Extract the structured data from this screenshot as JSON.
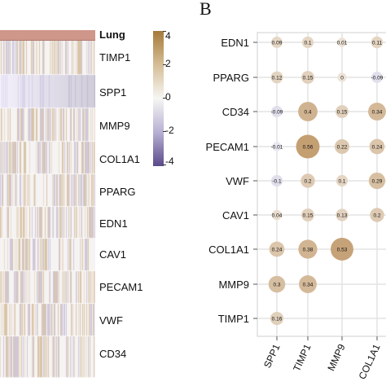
{
  "heatmap": {
    "group_label": "Lung",
    "genes": [
      "TIMP1",
      "SPP1",
      "MMP9",
      "COL1A1",
      "PPARG",
      "EDN1",
      "CAV1",
      "PECAM1",
      "VWF",
      "CD34"
    ],
    "colorbar": {
      "ticks": [
        "4",
        "2",
        "0",
        "-2",
        "-4"
      ],
      "high_color": "#a57a3a",
      "mid_color": "#f6f6f4",
      "low_color": "#5a4a8a"
    }
  },
  "panel_b": {
    "letter": "B"
  },
  "chart_data": {
    "type": "scatter",
    "rows": [
      "EDN1",
      "PPARG",
      "CD34",
      "PECAM1",
      "VWF",
      "CAV1",
      "COL1A1",
      "MMP9",
      "TIMP1"
    ],
    "columns": [
      "SPP1",
      "TIMP1",
      "MMP9",
      "COL1A1"
    ],
    "cells": [
      {
        "row": "EDN1",
        "col": "SPP1",
        "value": 0.09,
        "label": "0.09"
      },
      {
        "row": "EDN1",
        "col": "TIMP1",
        "value": 0.1,
        "label": "0.1"
      },
      {
        "row": "EDN1",
        "col": "MMP9",
        "value": 0.01,
        "label": "0.01"
      },
      {
        "row": "EDN1",
        "col": "COL1A1",
        "value": 0.11,
        "label": "0.11"
      },
      {
        "row": "PPARG",
        "col": "SPP1",
        "value": 0.12,
        "label": "0.12"
      },
      {
        "row": "PPARG",
        "col": "TIMP1",
        "value": 0.15,
        "label": "0.15"
      },
      {
        "row": "PPARG",
        "col": "MMP9",
        "value": 0,
        "label": "0"
      },
      {
        "row": "PPARG",
        "col": "COL1A1",
        "value": -0.09,
        "label": "-0.09"
      },
      {
        "row": "CD34",
        "col": "SPP1",
        "value": -0.09,
        "label": "-0.09"
      },
      {
        "row": "CD34",
        "col": "TIMP1",
        "value": 0.4,
        "label": "0.4"
      },
      {
        "row": "CD34",
        "col": "MMP9",
        "value": 0.15,
        "label": "0.15"
      },
      {
        "row": "CD34",
        "col": "COL1A1",
        "value": 0.34,
        "label": "0.34"
      },
      {
        "row": "PECAM1",
        "col": "SPP1",
        "value": -0.01,
        "label": "-0.01"
      },
      {
        "row": "PECAM1",
        "col": "TIMP1",
        "value": 0.56,
        "label": "0.56"
      },
      {
        "row": "PECAM1",
        "col": "MMP9",
        "value": 0.22,
        "label": "0.22"
      },
      {
        "row": "PECAM1",
        "col": "COL1A1",
        "value": 0.24,
        "label": "0.24"
      },
      {
        "row": "VWF",
        "col": "SPP1",
        "value": -0.1,
        "label": "-0.1"
      },
      {
        "row": "VWF",
        "col": "TIMP1",
        "value": 0.2,
        "label": "0.2"
      },
      {
        "row": "VWF",
        "col": "MMP9",
        "value": 0.1,
        "label": "0.1"
      },
      {
        "row": "VWF",
        "col": "COL1A1",
        "value": 0.29,
        "label": "0.29"
      },
      {
        "row": "CAV1",
        "col": "SPP1",
        "value": 0.04,
        "label": "0.04"
      },
      {
        "row": "CAV1",
        "col": "TIMP1",
        "value": 0.15,
        "label": "0.15"
      },
      {
        "row": "CAV1",
        "col": "MMP9",
        "value": 0.13,
        "label": "0.13"
      },
      {
        "row": "CAV1",
        "col": "COL1A1",
        "value": 0.2,
        "label": "0.2"
      },
      {
        "row": "COL1A1",
        "col": "SPP1",
        "value": 0.24,
        "label": "0.24"
      },
      {
        "row": "COL1A1",
        "col": "TIMP1",
        "value": 0.38,
        "label": "0.38"
      },
      {
        "row": "COL1A1",
        "col": "MMP9",
        "value": 0.53,
        "label": "0.53"
      },
      {
        "row": "MMP9",
        "col": "SPP1",
        "value": 0.3,
        "label": "0.3"
      },
      {
        "row": "MMP9",
        "col": "TIMP1",
        "value": 0.34,
        "label": "0.34"
      },
      {
        "row": "TIMP1",
        "col": "SPP1",
        "value": 0.16,
        "label": "0.16"
      }
    ],
    "positive_color": "#c19a6b",
    "negative_color": "#b8b0d3",
    "grid": true
  }
}
